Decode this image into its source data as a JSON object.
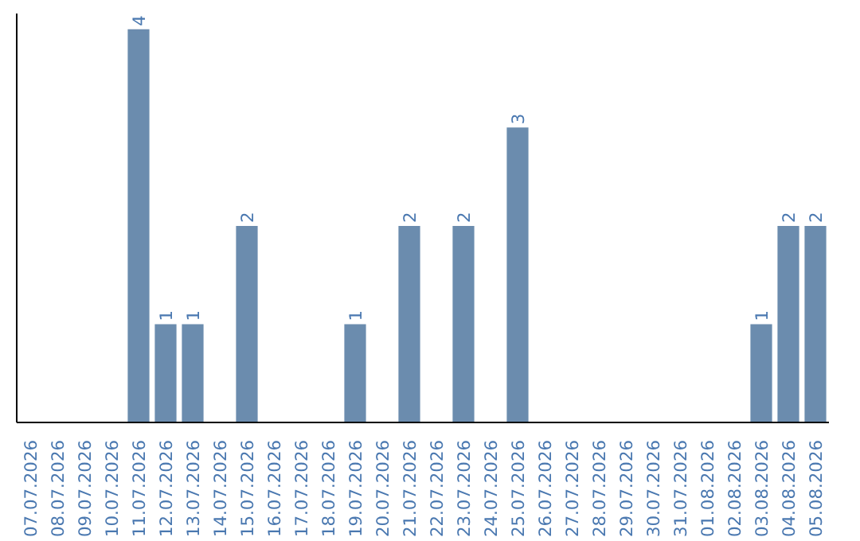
{
  "chart_data": {
    "type": "bar",
    "categories": [
      "07.07.2026",
      "08.07.2026",
      "09.07.2026",
      "10.07.2026",
      "11.07.2026",
      "12.07.2026",
      "13.07.2026",
      "14.07.2026",
      "15.07.2026",
      "16.07.2026",
      "17.07.2026",
      "18.07.2026",
      "19.07.2026",
      "20.07.2026",
      "21.07.2026",
      "22.07.2026",
      "23.07.2026",
      "24.07.2026",
      "25.07.2026",
      "26.07.2026",
      "27.07.2026",
      "28.07.2026",
      "29.07.2026",
      "30.07.2026",
      "31.07.2026",
      "01.08.2026",
      "02.08.2026",
      "03.08.2026",
      "04.08.2026",
      "05.08.2026"
    ],
    "values": [
      0,
      0,
      0,
      0,
      4,
      1,
      1,
      0,
      2,
      0,
      0,
      0,
      1,
      0,
      2,
      0,
      2,
      0,
      3,
      0,
      0,
      0,
      0,
      0,
      0,
      0,
      0,
      1,
      2,
      2
    ],
    "value_labels": [
      null,
      null,
      null,
      null,
      "4",
      "1",
      "1",
      null,
      "2",
      null,
      null,
      null,
      "1",
      null,
      "2",
      null,
      "2",
      null,
      "3",
      null,
      null,
      null,
      null,
      null,
      null,
      null,
      null,
      "1",
      "2",
      "2"
    ],
    "color": "#6b8cae"
  }
}
